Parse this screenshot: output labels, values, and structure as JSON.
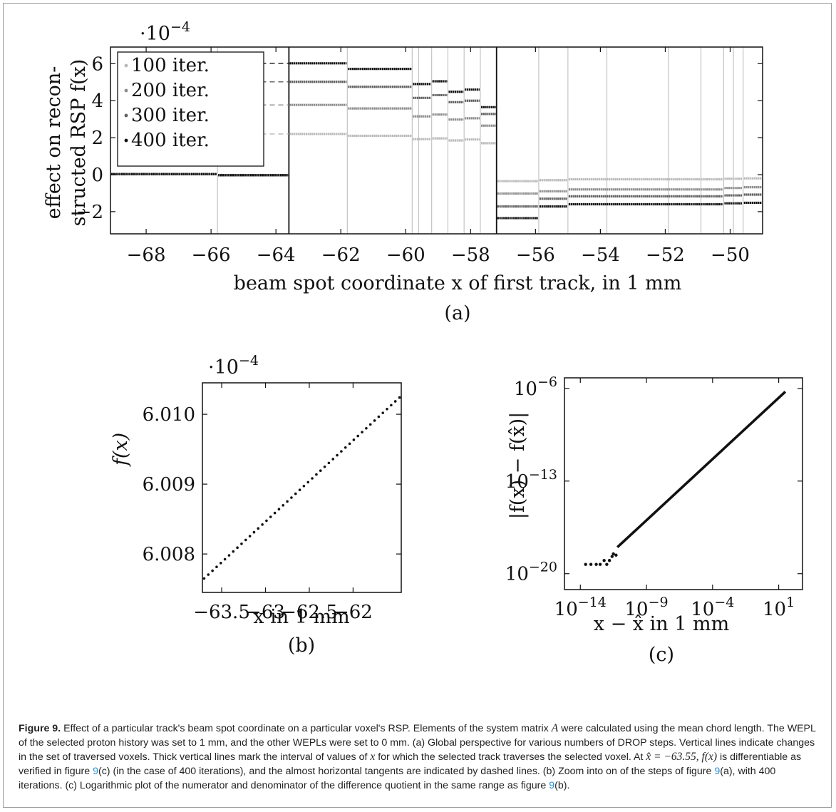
{
  "colors": {
    "iter100": "#b9b9b9",
    "iter200": "#8d8d8d",
    "iter300": "#5f5f5f",
    "iter400": "#111111",
    "link": "#2a8fd0"
  },
  "chart_data": [
    {
      "id": "a",
      "type": "scatter",
      "panel_label": "(a)",
      "exponent_label": "·10",
      "exponent_power": "−4",
      "xlabel": "beam spot coordinate x of first track, in 1 mm",
      "ylabel_line1": "effect on recon-",
      "ylabel_line2": "structed RSP f(x)",
      "xlim": [
        -69.1,
        -49.0
      ],
      "ylim": [
        -3.2,
        6.9
      ],
      "xticks": [
        -68,
        -66,
        -64,
        -62,
        -60,
        -58,
        -56,
        -54,
        -52,
        -50
      ],
      "xtick_labels": [
        "−68",
        "−66",
        "−64",
        "−62",
        "−60",
        "−58",
        "−56",
        "−54",
        "−52",
        "−50"
      ],
      "yticks": [
        -2,
        0,
        2,
        4,
        6
      ],
      "ytick_labels": [
        "−2",
        "0",
        "2",
        "4",
        "6"
      ],
      "legend_position": "top-left",
      "thick_vlines": [
        -63.6,
        -57.2
      ],
      "thin_vlines": [
        -65.8,
        -61.8,
        -59.8,
        -59.6,
        -59.2,
        -58.7,
        -58.2,
        -57.7,
        -55.9,
        -55.0,
        -53.8,
        -51.9,
        -50.9,
        -50.2,
        -49.9,
        -49.6
      ],
      "tangent_lines": {
        "x_start": -66.3,
        "x_end": -63.6,
        "y_values": [
          6.02,
          5.02,
          3.77,
          2.2
        ]
      },
      "series": [
        {
          "name": "100 iter.",
          "color": "#b9b9b9",
          "segments": [
            [
              -69.1,
              -65.8,
              0.03
            ],
            [
              -65.8,
              -63.6,
              -0.03
            ],
            [
              -63.6,
              -61.8,
              2.2
            ],
            [
              -61.8,
              -59.8,
              2.1
            ],
            [
              -59.8,
              -59.2,
              1.92
            ],
            [
              -59.2,
              -58.7,
              1.96
            ],
            [
              -58.7,
              -58.2,
              1.85
            ],
            [
              -58.2,
              -57.7,
              1.9
            ],
            [
              -57.7,
              -57.2,
              1.7
            ],
            [
              -57.2,
              -55.9,
              -0.35
            ],
            [
              -55.9,
              -55.0,
              -0.3
            ],
            [
              -55.0,
              -50.2,
              -0.25
            ],
            [
              -50.2,
              -49.6,
              -0.22
            ],
            [
              -49.6,
              -49.0,
              -0.2
            ]
          ]
        },
        {
          "name": "200 iter.",
          "color": "#8d8d8d",
          "segments": [
            [
              -69.1,
              -65.8,
              0.03
            ],
            [
              -65.8,
              -63.6,
              -0.03
            ],
            [
              -63.6,
              -61.8,
              3.77
            ],
            [
              -61.8,
              -59.8,
              3.58
            ],
            [
              -59.8,
              -59.2,
              3.15
            ],
            [
              -59.2,
              -58.7,
              3.25
            ],
            [
              -58.7,
              -58.2,
              2.98
            ],
            [
              -58.2,
              -57.7,
              3.05
            ],
            [
              -57.7,
              -57.2,
              2.65
            ],
            [
              -57.2,
              -55.9,
              -1.02
            ],
            [
              -55.9,
              -55.0,
              -0.9
            ],
            [
              -55.0,
              -50.2,
              -0.8
            ],
            [
              -50.2,
              -49.6,
              -0.72
            ],
            [
              -49.6,
              -49.0,
              -0.68
            ]
          ]
        },
        {
          "name": "300 iter.",
          "color": "#5f5f5f",
          "segments": [
            [
              -69.1,
              -65.8,
              0.03
            ],
            [
              -65.8,
              -63.6,
              -0.03
            ],
            [
              -63.6,
              -61.8,
              5.02
            ],
            [
              -61.8,
              -59.8,
              4.75
            ],
            [
              -59.8,
              -59.2,
              4.15
            ],
            [
              -59.2,
              -58.7,
              4.3
            ],
            [
              -58.7,
              -58.2,
              3.92
            ],
            [
              -58.2,
              -57.7,
              4.0
            ],
            [
              -57.7,
              -57.2,
              3.28
            ],
            [
              -57.2,
              -55.9,
              -1.72
            ],
            [
              -55.9,
              -55.0,
              -1.3
            ],
            [
              -55.0,
              -50.2,
              -1.17
            ],
            [
              -50.2,
              -49.6,
              -1.12
            ],
            [
              -49.6,
              -49.0,
              -1.08
            ]
          ]
        },
        {
          "name": "400 iter.",
          "color": "#111111",
          "segments": [
            [
              -69.1,
              -65.8,
              0.03
            ],
            [
              -65.8,
              -63.6,
              -0.03
            ],
            [
              -63.6,
              -61.8,
              6.02
            ],
            [
              -61.8,
              -59.8,
              5.72
            ],
            [
              -59.8,
              -59.2,
              4.9
            ],
            [
              -59.2,
              -58.7,
              5.05
            ],
            [
              -58.7,
              -58.2,
              4.48
            ],
            [
              -58.2,
              -57.7,
              4.6
            ],
            [
              -57.7,
              -57.2,
              3.65
            ],
            [
              -57.2,
              -55.9,
              -2.35
            ],
            [
              -55.9,
              -55.0,
              -1.72
            ],
            [
              -55.0,
              -50.2,
              -1.6
            ],
            [
              -50.2,
              -49.6,
              -1.55
            ],
            [
              -49.6,
              -49.0,
              -1.52
            ]
          ]
        }
      ]
    },
    {
      "id": "b",
      "type": "scatter",
      "panel_label": "(b)",
      "exponent_label": "·10",
      "exponent_power": "−4",
      "xlabel": "x in 1 mm",
      "ylabel": "f(x)",
      "xlim": [
        -63.72,
        -61.45
      ],
      "ylim": [
        6.00745,
        6.01045
      ],
      "xticks": [
        -63.5,
        -63,
        -62.5,
        -62
      ],
      "xtick_labels": [
        "−63.5",
        "−63",
        "−62.5",
        "−62"
      ],
      "yticks": [
        6.008,
        6.009,
        6.01
      ],
      "ytick_labels": [
        "6.008",
        "6.009",
        "6.010"
      ],
      "line": {
        "x": [
          -63.7,
          -61.47
        ],
        "y": [
          6.00765,
          6.01024
        ],
        "points": 48
      }
    },
    {
      "id": "c",
      "type": "scatter",
      "panel_label": "(c)",
      "xscale": "log",
      "yscale": "log",
      "xlabel": "x − x̂ in 1 mm",
      "ylabel": "|f(x) − f(x̂)|",
      "xlim_log10": [
        -15.2,
        2.8
      ],
      "ylim_log10": [
        -21.2,
        -5.2
      ],
      "xticks_log10": [
        -14,
        -9,
        -4,
        1
      ],
      "xtick_labels": [
        [
          "10",
          "−14"
        ],
        [
          "10",
          "−9"
        ],
        [
          "10",
          "−4"
        ],
        [
          "10",
          "1"
        ]
      ],
      "yticks_log10": [
        -20,
        -13,
        -6
      ],
      "ytick_labels": [
        [
          "10",
          "−20"
        ],
        [
          "10",
          "−13"
        ],
        [
          "10",
          "−6"
        ]
      ],
      "line": {
        "x_log10": [
          -11.2,
          1.5
        ],
        "y_log10": [
          -18.0,
          -6.25
        ]
      },
      "floor_points": {
        "x_log10": [
          -13.6,
          -13.2,
          -12.8,
          -12.5,
          -12.2,
          -12.0,
          -11.8,
          -11.6,
          -11.5,
          -11.3
        ],
        "y_log10": [
          -19.3,
          -19.3,
          -19.3,
          -19.3,
          -19.0,
          -19.3,
          -19.0,
          -18.7,
          -18.5,
          -18.6
        ]
      }
    }
  ],
  "caption": {
    "fig_label": "Figure 9.",
    "seg1": " Effect of a particular track's beam spot coordinate on a particular voxel's RSP. Elements of the system matrix ",
    "A": "A",
    "seg2": " were calculated using the mean chord length. The WEPL of the selected proton history was set to 1 mm, and the other WEPLs were set to 0 mm. (a) Global perspective for various numbers of DROP steps. Vertical lines indicate changes in the set of traversed voxels. Thick vertical lines mark the interval of values of ",
    "x": "x",
    "seg3": " for which the selected track traverses the selected voxel. At ",
    "math1": "x̂ = −63.55, f(x)",
    "seg4": " is differentiable as verified in figure ",
    "ref1": "9",
    "seg5": "(c) (in the case of 400 iterations), and the almost horizontal tangents are indicated by dashed lines. (b) Zoom into on of the steps of figure ",
    "ref2": "9",
    "seg6": "(a), with 400 iterations. (c) Logarithmic plot of the numerator and denominator of the difference quotient in the same range as figure ",
    "ref3": "9",
    "seg7": "(b)."
  }
}
